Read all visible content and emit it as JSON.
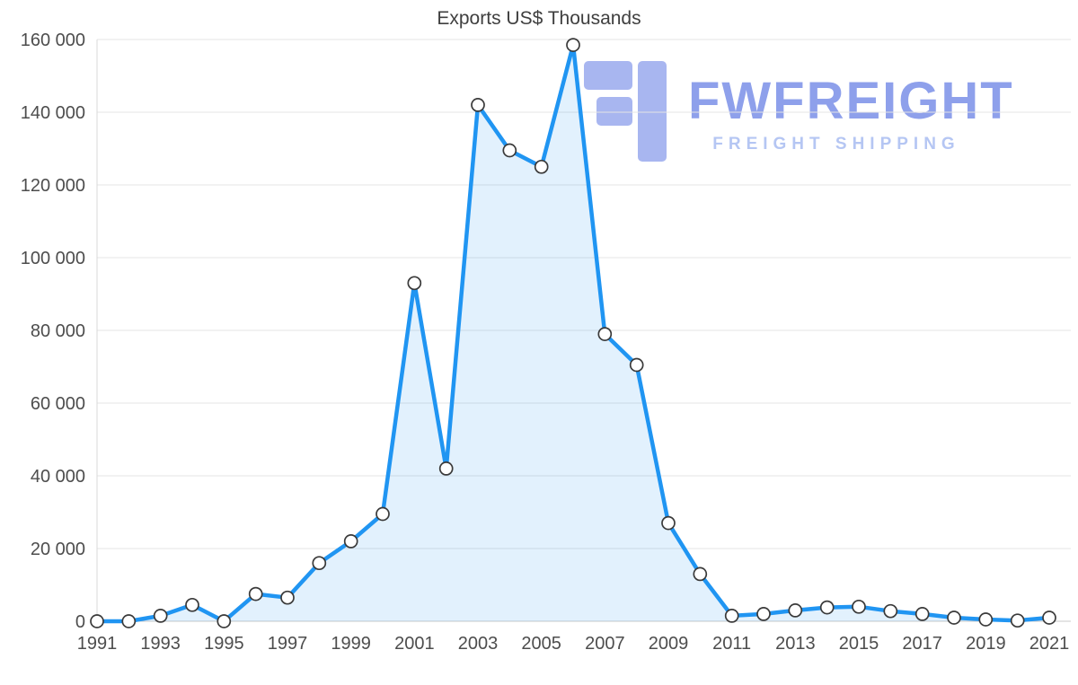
{
  "title": "Exports US$ Thousands",
  "watermark": {
    "brand": "FWFREIGHT",
    "tagline": "FREIGHT SHIPPING",
    "brand_color": "#7b90e8",
    "tagline_color": "#a9bdf2",
    "glyph_color": "#8094ea"
  },
  "chart_data": {
    "type": "area",
    "title": "Exports US$ Thousands",
    "x": [
      1991,
      1992,
      1993,
      1994,
      1995,
      1996,
      1997,
      1998,
      1999,
      2000,
      2001,
      2002,
      2003,
      2004,
      2005,
      2006,
      2007,
      2008,
      2009,
      2010,
      2011,
      2012,
      2013,
      2014,
      2015,
      2016,
      2017,
      2018,
      2019,
      2020,
      2021
    ],
    "values": [
      0,
      0,
      1500,
      4500,
      0,
      7500,
      6500,
      16000,
      22000,
      29500,
      93000,
      42000,
      142000,
      129500,
      125000,
      158500,
      79000,
      70500,
      27000,
      13000,
      1500,
      2000,
      3000,
      3800,
      4000,
      2800,
      2000,
      1000,
      500,
      200,
      1000
    ],
    "ylim": [
      0,
      160000
    ],
    "y_ticks": [
      {
        "value": 0,
        "label": "0"
      },
      {
        "value": 20000,
        "label": "20 000"
      },
      {
        "value": 40000,
        "label": "40 000"
      },
      {
        "value": 60000,
        "label": "60 000"
      },
      {
        "value": 80000,
        "label": "80 000"
      },
      {
        "value": 100000,
        "label": "100 000"
      },
      {
        "value": 120000,
        "label": "120 000"
      },
      {
        "value": 140000,
        "label": "140 000"
      },
      {
        "value": 160000,
        "label": "160 000"
      }
    ],
    "x_tick_labels": [
      "1991",
      "1993",
      "1995",
      "1997",
      "1999",
      "2001",
      "2003",
      "2005",
      "2007",
      "2009",
      "2011",
      "2013",
      "2015",
      "2017",
      "2019",
      "2021"
    ],
    "grid": true,
    "legend": false,
    "line_color": "#2095f2",
    "area_color": "rgba(32, 149, 242, 0.13)",
    "marker_fill": "#ffffff",
    "marker_stroke": "#3a3a3a",
    "grid_color": "#e4e4e4",
    "zero_line_color": "#c9c9c9"
  }
}
